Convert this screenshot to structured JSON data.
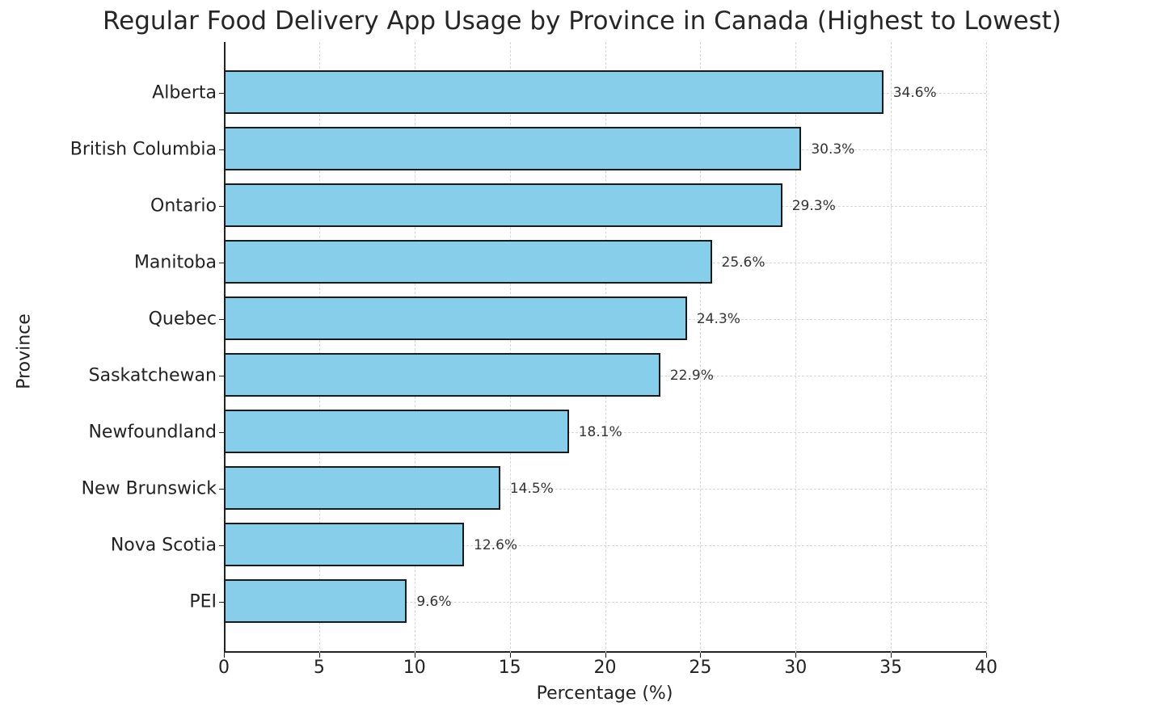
{
  "chart_data": {
    "type": "bar",
    "orientation": "horizontal",
    "title": "Regular Food Delivery App Usage by Province in Canada (Highest to Lowest)",
    "xlabel": "Percentage (%)",
    "ylabel": "Province",
    "xlim": [
      0,
      40
    ],
    "xticks": [
      "0",
      "5",
      "10",
      "15",
      "20",
      "25",
      "30",
      "35",
      "40"
    ],
    "grid": true,
    "legend": null,
    "bar_color": "#87ceeb",
    "edge_color": "#1a1a1a",
    "categories": [
      "Alberta",
      "British Columbia",
      "Ontario",
      "Manitoba",
      "Quebec",
      "Saskatchewan",
      "Newfoundland",
      "New Brunswick",
      "Nova Scotia",
      "PEI"
    ],
    "values": [
      34.6,
      30.3,
      29.3,
      25.6,
      24.3,
      22.9,
      18.1,
      14.5,
      12.6,
      9.6
    ],
    "value_labels": [
      "34.6%",
      "30.3%",
      "29.3%",
      "25.6%",
      "24.3%",
      "22.9%",
      "18.1%",
      "14.5%",
      "12.6%",
      "9.6%"
    ]
  }
}
